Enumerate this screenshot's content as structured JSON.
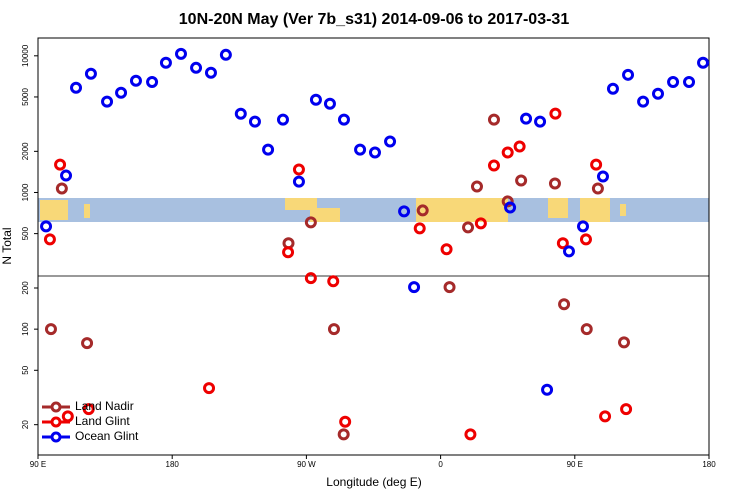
{
  "chart_data": {
    "type": "scatter",
    "title": "10N-20N May (Ver 7b_s31)   2014-09-06 to 2017-03-31",
    "xlabel": "Longitude (deg E)",
    "ylabel": "N Total",
    "xlim": [
      90,
      540
    ],
    "xticks": [
      {
        "value": 90,
        "label": "90 E"
      },
      180,
      {
        "value": 270,
        "label": "90 W"
      },
      {
        "value": 360,
        "label": "0"
      },
      {
        "value": 450,
        "label": "90 E"
      },
      {
        "value": 540,
        "label": "180"
      }
    ],
    "ylim": [
      12,
      13500
    ],
    "ylog": true,
    "yticks": [
      20,
      50,
      100,
      200,
      500,
      1000,
      2000,
      5000,
      10000
    ],
    "legend": "lower left",
    "series": [
      {
        "name": "Land Nadir",
        "color": "#a52a2a",
        "x": [
          98.7,
          122.9,
          106,
          258,
          273,
          288.5,
          295,
          348,
          366,
          378.4,
          384.4,
          395.8,
          405,
          414,
          436.7,
          442.8,
          458,
          465.5,
          483
        ],
        "values": [
          100,
          79,
          1070,
          425,
          604,
          100,
          17,
          739,
          203,
          555,
          1106,
          3410,
          860,
          1224,
          1164,
          152,
          100,
          1070,
          80
        ]
      },
      {
        "name": "Land Glint",
        "color": "#ee0000",
        "x": [
          98,
          104.8,
          110,
          124,
          204.7,
          257.7,
          265,
          273,
          288,
          296,
          346,
          364,
          380,
          387,
          395.8,
          405,
          413,
          437,
          442,
          457.5,
          464.3,
          470.3,
          484.4
        ],
        "values": [
          454,
          1600,
          23,
          26,
          37,
          365,
          1472,
          236,
          224,
          21,
          546,
          384,
          17,
          594,
          1575,
          1960,
          2170,
          3775,
          425,
          454,
          1600,
          23,
          26
        ]
      },
      {
        "name": "Ocean Glint",
        "color": "#0000ee",
        "x": [
          95.4,
          108.8,
          115.5,
          125.5,
          136.3,
          145.7,
          155.7,
          166.5,
          175.8,
          185.9,
          196,
          206,
          216,
          226,
          235.5,
          244.3,
          254.3,
          265,
          276.4,
          285.8,
          295.2,
          306,
          316,
          326.1,
          335.5,
          342.2,
          406.6,
          417.3,
          426.7,
          446.1,
          431.4,
          455.5,
          468.9,
          475.6,
          485.7,
          495.8,
          505.8,
          515.9,
          526.6,
          536
        ],
        "values": [
          565,
          1330,
          5840,
          7390,
          4620,
          5370,
          6570,
          6430,
          8890,
          10340,
          8170,
          7520,
          10170,
          3770,
          3300,
          2060,
          3410,
          1200,
          4770,
          4460,
          3410,
          2060,
          1960,
          2360,
          727,
          203,
          777,
          3470,
          3300,
          371,
          36,
          565,
          1310,
          5740,
          7260,
          4620,
          5280,
          6430,
          6430,
          8890
        ]
      }
    ]
  }
}
